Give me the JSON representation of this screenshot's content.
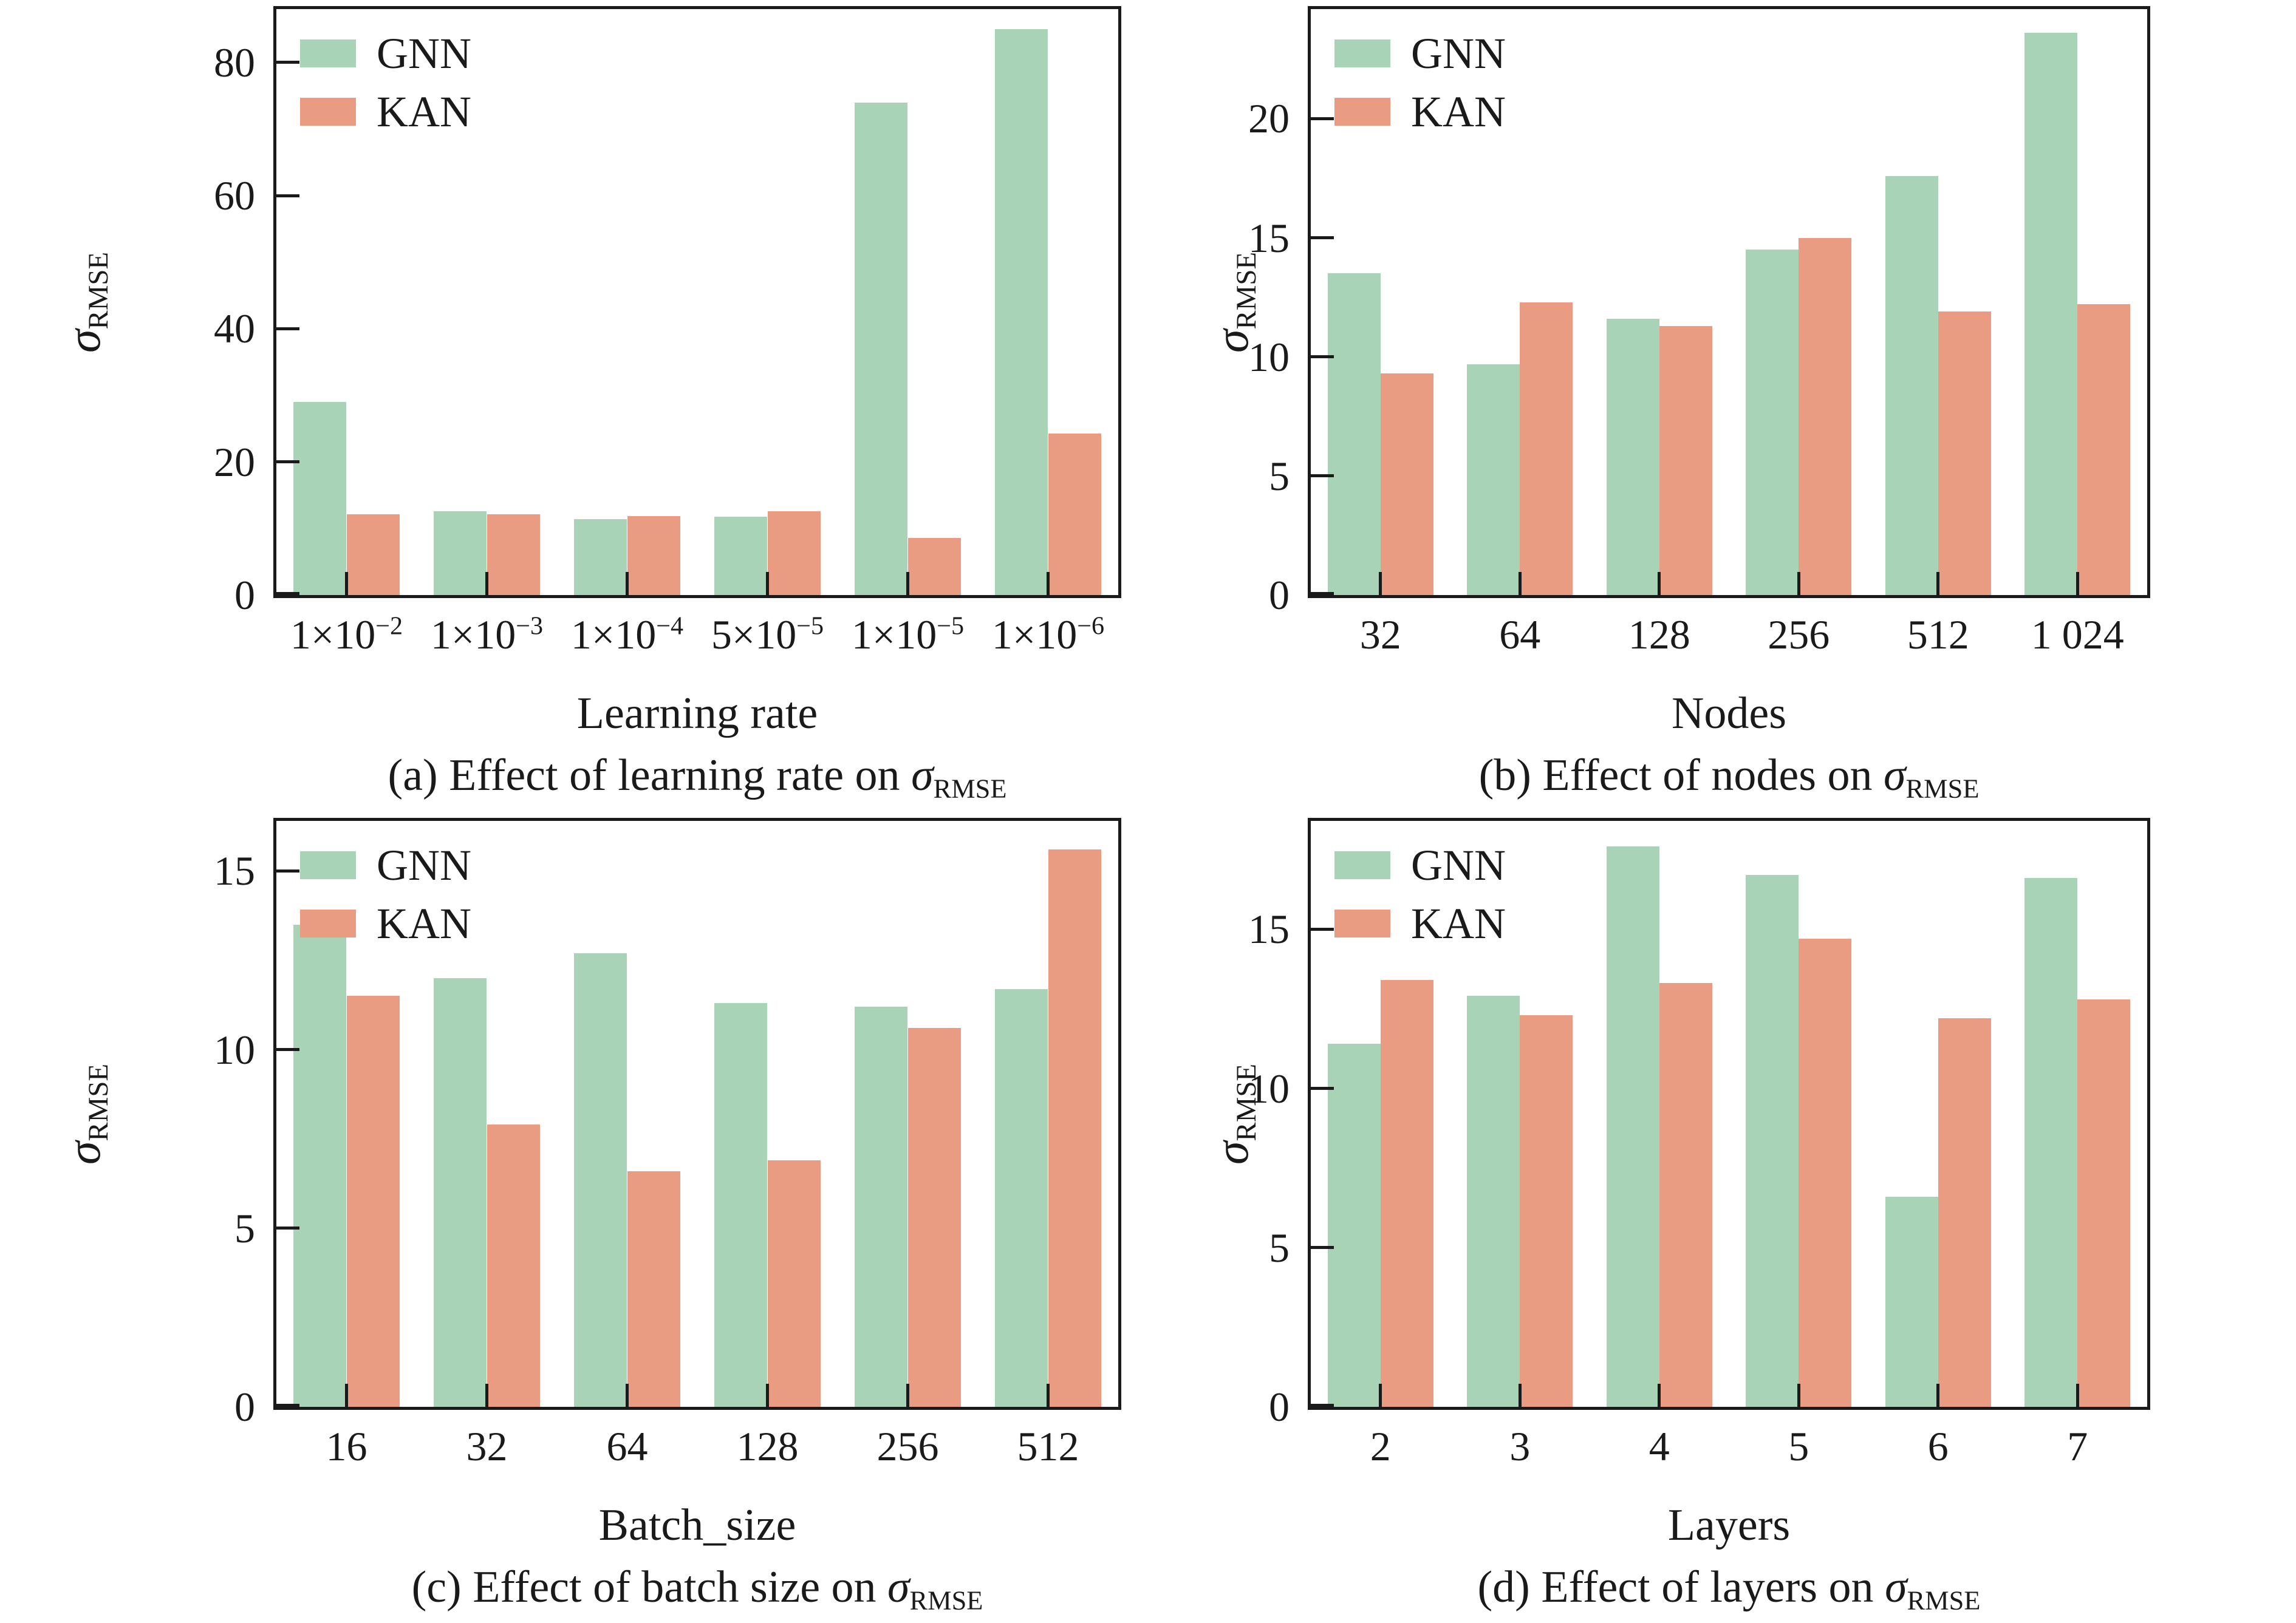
{
  "sigma": {
    "symbol": "σ",
    "subscript": "RMSE"
  },
  "colors": {
    "gnn": "#a9d3b6",
    "kan": "#e99c81",
    "axis": "#1a1a1a"
  },
  "chart_data": [
    {
      "type": "bar",
      "title": "(a) Effect of learning rate on σ_RMSE",
      "caption_prefix": "(a) Effect of learning rate on ",
      "xlabel": "Learning rate",
      "ylabel": "σ_RMSE",
      "grid": false,
      "legend_position": "upper left",
      "categories": [
        {
          "base": "1×10",
          "sup": "−2"
        },
        {
          "base": "1×10",
          "sup": "−3"
        },
        {
          "base": "1×10",
          "sup": "−4"
        },
        {
          "base": "5×10",
          "sup": "−5"
        },
        {
          "base": "1×10",
          "sup": "−5"
        },
        {
          "base": "1×10",
          "sup": "−6"
        }
      ],
      "yticks": [
        0,
        20,
        40,
        60,
        80
      ],
      "ylim": [
        0,
        88
      ],
      "series": [
        {
          "name": "GNN",
          "values": [
            29.0,
            12.6,
            11.4,
            11.8,
            74.0,
            85.0
          ]
        },
        {
          "name": "KAN",
          "values": [
            12.1,
            12.1,
            11.9,
            12.6,
            8.6,
            24.3
          ]
        }
      ]
    },
    {
      "type": "bar",
      "title": "(b) Effect of nodes on σ_RMSE",
      "caption_prefix": "(b) Effect of nodes on ",
      "xlabel": "Nodes",
      "ylabel": "σ_RMSE",
      "grid": false,
      "legend_position": "upper left",
      "categories": [
        "32",
        "64",
        "128",
        "256",
        "512",
        "1 024"
      ],
      "yticks": [
        0,
        5,
        10,
        15,
        20
      ],
      "ylim": [
        0,
        24.6
      ],
      "series": [
        {
          "name": "GNN",
          "values": [
            13.5,
            9.7,
            11.6,
            14.5,
            17.6,
            23.6
          ]
        },
        {
          "name": "KAN",
          "values": [
            9.3,
            12.3,
            11.3,
            15.0,
            11.9,
            12.2
          ]
        }
      ]
    },
    {
      "type": "bar",
      "title": "(c) Effect of batch size on σ_RMSE",
      "caption_prefix": "(c) Effect of batch size on ",
      "xlabel": "Batch_size",
      "ylabel": "σ_RMSE",
      "grid": false,
      "legend_position": "upper left",
      "categories": [
        "16",
        "32",
        "64",
        "128",
        "256",
        "512"
      ],
      "yticks": [
        0,
        5,
        10,
        15
      ],
      "ylim": [
        0,
        16.4
      ],
      "series": [
        {
          "name": "GNN",
          "values": [
            13.5,
            12.0,
            12.7,
            11.3,
            11.2,
            11.7
          ]
        },
        {
          "name": "KAN",
          "values": [
            11.5,
            7.9,
            6.6,
            6.9,
            10.6,
            15.6
          ]
        }
      ]
    },
    {
      "type": "bar",
      "title": "(d) Effect of layers on σ_RMSE",
      "caption_prefix": "(d) Effect of layers on ",
      "xlabel": "Layers",
      "ylabel": "σ_RMSE",
      "grid": false,
      "legend_position": "upper left",
      "categories": [
        "2",
        "3",
        "4",
        "5",
        "6",
        "7"
      ],
      "yticks": [
        0,
        5,
        10,
        15
      ],
      "ylim": [
        0,
        18.4
      ],
      "series": [
        {
          "name": "GNN",
          "values": [
            11.4,
            12.9,
            17.6,
            16.7,
            6.6,
            16.6
          ]
        },
        {
          "name": "KAN",
          "values": [
            13.4,
            12.3,
            13.3,
            14.7,
            12.2,
            12.8
          ]
        }
      ]
    }
  ]
}
